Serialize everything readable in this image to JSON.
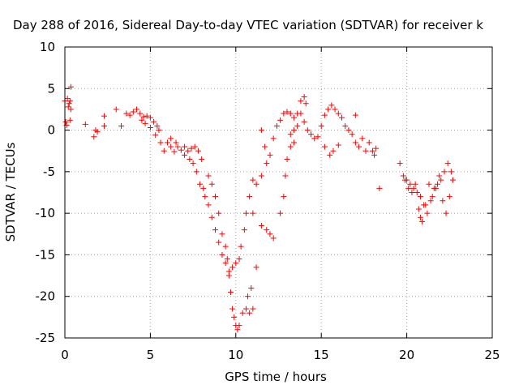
{
  "chart_data": {
    "type": "scatter",
    "title": "Day 288 of 2016, Sidereal Day-to-day VTEC variation (SDTVAR) for receiver k",
    "xlabel": "GPS time / hours",
    "ylabel": "SDTVAR / TECUs",
    "xlim": [
      0,
      25
    ],
    "ylim": [
      -25,
      10
    ],
    "xticks": [
      0,
      5,
      10,
      15,
      20,
      25
    ],
    "yticks": [
      -25,
      -20,
      -15,
      -10,
      -5,
      0,
      5,
      10
    ],
    "grid": true,
    "marker": "+",
    "marker_color": "#ff0000",
    "series": [
      {
        "points": [
          [
            0.0,
            3.5
          ],
          [
            0.05,
            1.0
          ],
          [
            0.1,
            0.6
          ],
          [
            0.15,
            3.8
          ],
          [
            0.2,
            2.8
          ],
          [
            0.25,
            3.2
          ],
          [
            0.3,
            3.5
          ],
          [
            0.35,
            5.2
          ],
          [
            0.3,
            1.2
          ],
          [
            0.35,
            2.5
          ],
          [
            1.2,
            0.7
          ],
          [
            1.7,
            -0.8
          ],
          [
            1.8,
            0.0
          ],
          [
            1.9,
            -0.2
          ],
          [
            2.3,
            1.7
          ],
          [
            2.3,
            0.5
          ],
          [
            3.0,
            2.5
          ],
          [
            3.3,
            0.5
          ],
          [
            3.6,
            2.0
          ],
          [
            3.8,
            1.8
          ],
          [
            4.0,
            2.2
          ],
          [
            4.2,
            2.5
          ],
          [
            4.4,
            2.0
          ],
          [
            4.6,
            1.6
          ],
          [
            4.8,
            1.7
          ],
          [
            5.0,
            1.5
          ],
          [
            5.2,
            1.0
          ],
          [
            5.4,
            0.5
          ],
          [
            5.5,
            0.0
          ],
          [
            4.5,
            1.2
          ],
          [
            4.7,
            0.8
          ],
          [
            5.0,
            0.3
          ],
          [
            5.3,
            -0.6
          ],
          [
            5.6,
            -1.5
          ],
          [
            5.8,
            -2.5
          ],
          [
            6.0,
            -1.5
          ],
          [
            6.2,
            -2.0
          ],
          [
            6.4,
            -2.6
          ],
          [
            6.6,
            -2.0
          ],
          [
            6.8,
            -2.4
          ],
          [
            7.0,
            -2.0
          ],
          [
            7.2,
            -2.5
          ],
          [
            7.4,
            -2.2
          ],
          [
            7.6,
            -2.0
          ],
          [
            7.8,
            -2.5
          ],
          [
            8.0,
            -3.5
          ],
          [
            6.2,
            -1.0
          ],
          [
            6.5,
            -1.5
          ],
          [
            7.0,
            -3.0
          ],
          [
            7.3,
            -3.5
          ],
          [
            7.5,
            -4.0
          ],
          [
            7.7,
            -5.0
          ],
          [
            7.9,
            -6.5
          ],
          [
            8.1,
            -7.0
          ],
          [
            8.2,
            -8.0
          ],
          [
            8.4,
            -9.0
          ],
          [
            8.6,
            -10.5
          ],
          [
            8.8,
            -12.0
          ],
          [
            9.0,
            -13.5
          ],
          [
            9.2,
            -15.0
          ],
          [
            9.4,
            -16.0
          ],
          [
            9.6,
            -17.0
          ],
          [
            9.8,
            -16.5
          ],
          [
            10.0,
            -16.0
          ],
          [
            10.2,
            -15.5
          ],
          [
            8.4,
            -5.5
          ],
          [
            8.6,
            -6.5
          ],
          [
            8.8,
            -8.0
          ],
          [
            9.0,
            -10.0
          ],
          [
            9.2,
            -12.5
          ],
          [
            9.4,
            -14.0
          ],
          [
            9.5,
            -15.5
          ],
          [
            9.6,
            -17.5
          ],
          [
            9.7,
            -19.5
          ],
          [
            9.8,
            -21.5
          ],
          [
            9.9,
            -22.5
          ],
          [
            10.0,
            -23.5
          ],
          [
            10.1,
            -24.0
          ],
          [
            10.2,
            -23.5
          ],
          [
            10.4,
            -22.0
          ],
          [
            10.6,
            -21.5
          ],
          [
            10.8,
            -22.0
          ],
          [
            11.0,
            -21.5
          ],
          [
            10.9,
            -19.0
          ],
          [
            10.7,
            -20.0
          ],
          [
            10.3,
            -14.0
          ],
          [
            10.5,
            -12.0
          ],
          [
            10.6,
            -10.0
          ],
          [
            10.8,
            -8.0
          ],
          [
            11.0,
            -6.0
          ],
          [
            11.2,
            -6.5
          ],
          [
            11.5,
            -5.5
          ],
          [
            11.0,
            -10.0
          ],
          [
            11.2,
            -16.5
          ],
          [
            11.5,
            -11.5
          ],
          [
            11.8,
            -12.0
          ],
          [
            12.0,
            -12.5
          ],
          [
            12.2,
            -13.0
          ],
          [
            11.5,
            0.0
          ],
          [
            11.7,
            -2.0
          ],
          [
            11.8,
            -4.0
          ],
          [
            12.0,
            -3.0
          ],
          [
            12.2,
            -1.0
          ],
          [
            12.4,
            0.5
          ],
          [
            12.6,
            1.2
          ],
          [
            12.8,
            2.0
          ],
          [
            13.0,
            2.2
          ],
          [
            13.2,
            2.0
          ],
          [
            13.4,
            1.5
          ],
          [
            12.6,
            -10.0
          ],
          [
            12.8,
            -8.0
          ],
          [
            12.9,
            -5.5
          ],
          [
            13.0,
            -3.5
          ],
          [
            13.2,
            -2.0
          ],
          [
            13.4,
            0.0
          ],
          [
            13.6,
            2.0
          ],
          [
            13.8,
            3.5
          ],
          [
            14.0,
            4.0
          ],
          [
            14.1,
            3.2
          ],
          [
            13.2,
            -0.5
          ],
          [
            13.4,
            -1.5
          ],
          [
            13.6,
            0.5
          ],
          [
            13.8,
            2.0
          ],
          [
            14.0,
            1.0
          ],
          [
            14.2,
            0.0
          ],
          [
            14.4,
            -0.5
          ],
          [
            14.6,
            -1.0
          ],
          [
            14.8,
            -0.8
          ],
          [
            15.0,
            0.5
          ],
          [
            15.2,
            1.8
          ],
          [
            15.4,
            2.5
          ],
          [
            15.6,
            3.0
          ],
          [
            15.8,
            2.5
          ],
          [
            16.0,
            2.0
          ],
          [
            16.2,
            1.5
          ],
          [
            16.4,
            0.5
          ],
          [
            15.2,
            -2.0
          ],
          [
            15.5,
            -3.0
          ],
          [
            15.7,
            -2.5
          ],
          [
            16.0,
            -1.8
          ],
          [
            16.6,
            0.0
          ],
          [
            16.8,
            -0.5
          ],
          [
            17.0,
            1.8
          ],
          [
            17.0,
            -1.5
          ],
          [
            17.2,
            -2.0
          ],
          [
            17.4,
            -1.0
          ],
          [
            17.6,
            -2.5
          ],
          [
            17.8,
            -1.5
          ],
          [
            18.0,
            -2.5
          ],
          [
            18.1,
            -3.0
          ],
          [
            18.2,
            -2.2
          ],
          [
            18.4,
            -7.0
          ],
          [
            19.6,
            -4.0
          ],
          [
            19.8,
            -5.5
          ],
          [
            20.0,
            -6.0
          ],
          [
            20.2,
            -6.5
          ],
          [
            20.4,
            -7.0
          ],
          [
            20.6,
            -7.5
          ],
          [
            20.8,
            -8.0
          ],
          [
            21.0,
            -9.0
          ],
          [
            21.2,
            -10.0
          ],
          [
            21.4,
            -8.5
          ],
          [
            21.6,
            -7.0
          ],
          [
            21.8,
            -6.5
          ],
          [
            22.0,
            -6.0
          ],
          [
            22.2,
            -5.0
          ],
          [
            22.4,
            -4.0
          ],
          [
            22.6,
            -5.0
          ],
          [
            19.9,
            -6.0
          ],
          [
            20.1,
            -7.0
          ],
          [
            20.3,
            -7.5
          ],
          [
            20.5,
            -6.5
          ],
          [
            20.7,
            -9.5
          ],
          [
            20.8,
            -10.5
          ],
          [
            20.9,
            -11.0
          ],
          [
            21.1,
            -9.0
          ],
          [
            21.3,
            -6.5
          ],
          [
            21.5,
            -8.0
          ],
          [
            21.7,
            -7.0
          ],
          [
            21.9,
            -5.5
          ],
          [
            22.1,
            -8.5
          ],
          [
            22.3,
            -10.0
          ],
          [
            22.5,
            -8.0
          ],
          [
            22.7,
            -6.0
          ]
        ]
      }
    ]
  }
}
